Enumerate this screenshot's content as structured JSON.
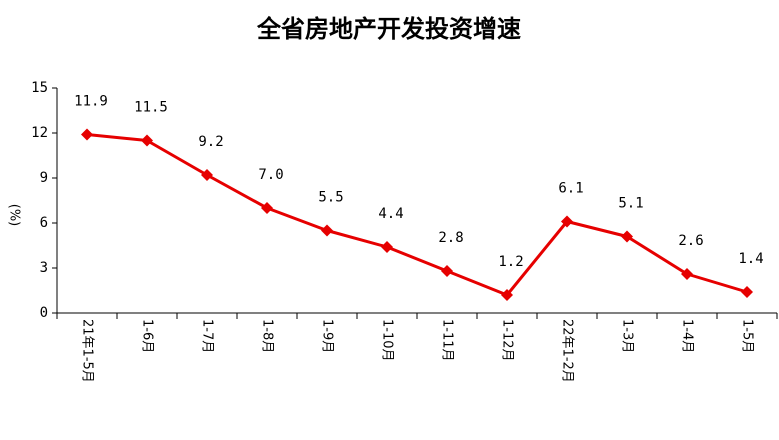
{
  "chart_data": {
    "type": "line",
    "title": "全省房地产开发投资增速",
    "y_label": "(%)",
    "categories": [
      "21年1-5月",
      "1-6月",
      "1-7月",
      "1-8月",
      "1-9月",
      "1-10月",
      "1-11月",
      "1-12月",
      "22年1-2月",
      "1-3月",
      "1-4月",
      "1-5月"
    ],
    "values": [
      11.9,
      11.5,
      9.2,
      7.0,
      5.5,
      4.4,
      2.8,
      1.2,
      6.1,
      5.1,
      2.6,
      1.4
    ],
    "value_labels": [
      "11.9",
      "11.5",
      "9.2",
      "7.0",
      "5.5",
      "4.4",
      "2.8",
      "1.2",
      "6.1",
      "5.1",
      "2.6",
      "1.4"
    ],
    "color": "#e60000",
    "ylim": [
      0,
      15
    ],
    "yticks": [
      0,
      3,
      6,
      9,
      12,
      15
    ],
    "grid": false
  }
}
